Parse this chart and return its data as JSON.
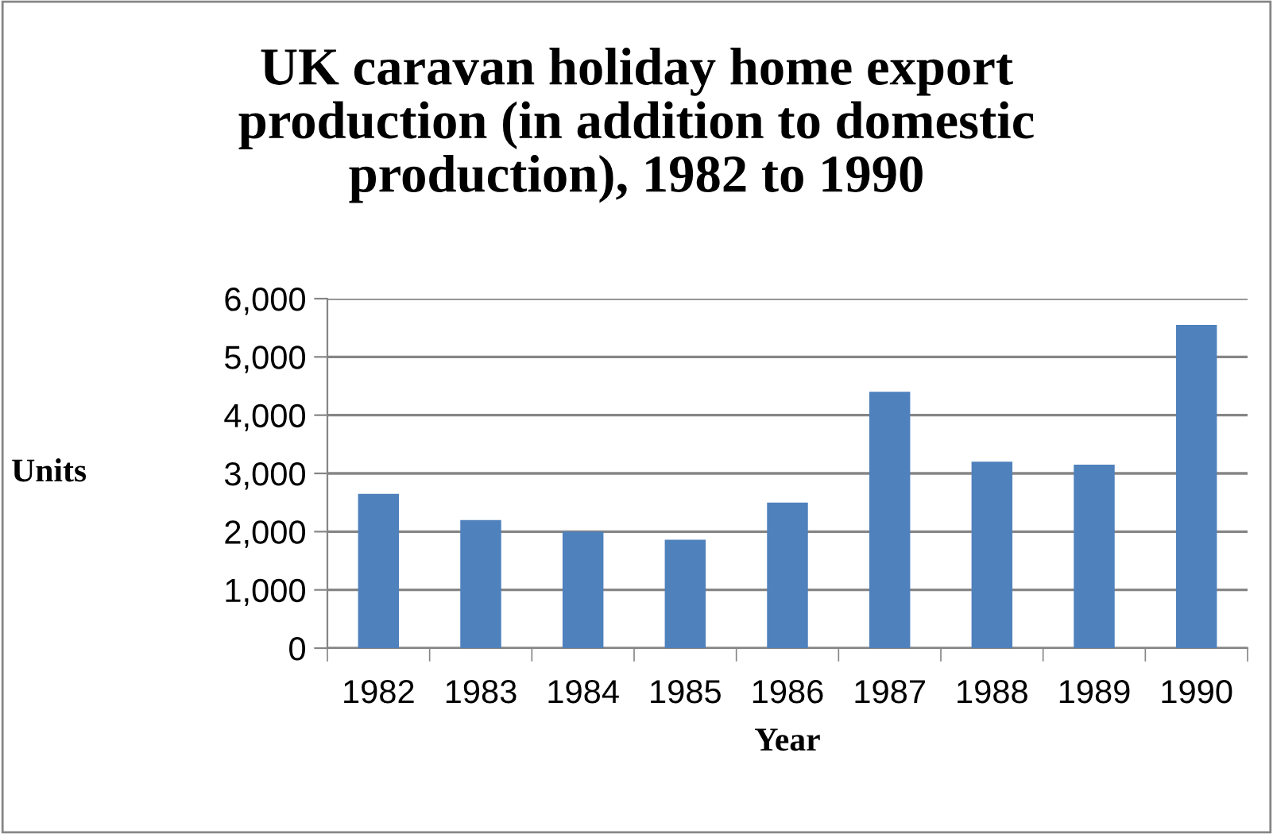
{
  "chart_data": {
    "type": "bar",
    "title": "UK caravan holiday home export\nproduction (in addition to domestic\nproduction), 1982 to 1990",
    "xlabel": "Year",
    "ylabel": "Units",
    "categories": [
      "1982",
      "1983",
      "1984",
      "1985",
      "1986",
      "1987",
      "1988",
      "1989",
      "1990"
    ],
    "values": [
      2650,
      2200,
      2000,
      1860,
      2500,
      4400,
      3200,
      3150,
      5550
    ],
    "color": "#4f81bd",
    "ylim": [
      0,
      6000
    ],
    "yticks": [
      {
        "value": 0,
        "label": "0"
      },
      {
        "value": 1000,
        "label": "1,000"
      },
      {
        "value": 2000,
        "label": "2,000"
      },
      {
        "value": 3000,
        "label": "3,000"
      },
      {
        "value": 4000,
        "label": "4,000"
      },
      {
        "value": 5000,
        "label": "5,000"
      },
      {
        "value": 6000,
        "label": "6,000"
      }
    ],
    "grid": "y",
    "legend": false
  }
}
